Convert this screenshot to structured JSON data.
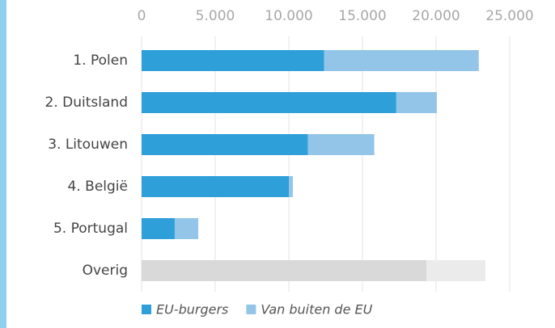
{
  "chart_data": {
    "type": "stacked-bar-horizontal",
    "categories": [
      "1. Polen",
      "2. Duitsland",
      "3. Litouwen",
      "4. België",
      "5. Portugal",
      "Overig"
    ],
    "series": [
      {
        "name": "EU-burgers",
        "color": "#2e9fd9",
        "colors": [
          "#2e9fd9",
          "#2e9fd9",
          "#2e9fd9",
          "#2e9fd9",
          "#2e9fd9",
          "#d9d9d9"
        ],
        "values": [
          12400,
          17300,
          11300,
          10000,
          2250,
          19350
        ]
      },
      {
        "name": "Van buiten de EU",
        "color": "#92c5e8",
        "colors": [
          "#92c5e8",
          "#92c5e8",
          "#92c5e8",
          "#92c5e8",
          "#92c5e8",
          "#ebebeb"
        ],
        "values": [
          10500,
          2750,
          4500,
          270,
          1600,
          4000
        ]
      }
    ],
    "xlim": [
      0,
      25000
    ],
    "xticks": [
      0,
      {
        "value": 5000,
        "label": "5.000"
      },
      {
        "value": 10000,
        "label": "10.000"
      },
      {
        "value": 15000,
        "label": "15.000"
      },
      {
        "value": 20000,
        "label": "20.000"
      },
      {
        "value": 25000,
        "label": "25.000"
      }
    ],
    "grid": true,
    "legend": "bottom"
  }
}
